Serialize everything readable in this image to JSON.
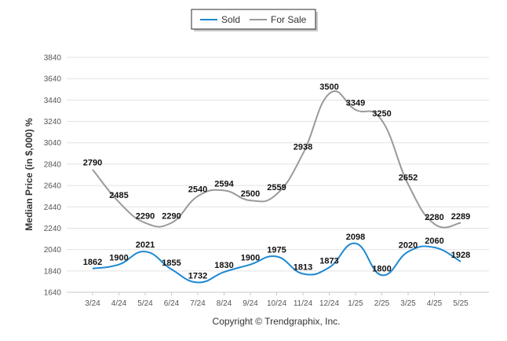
{
  "chart_data": {
    "type": "line",
    "ylabel": "Median Price (in $,000) %",
    "categories": [
      "3/24",
      "4/24",
      "5/24",
      "6/24",
      "7/24",
      "8/24",
      "9/24",
      "10/24",
      "11/24",
      "12/24",
      "1/25",
      "2/25",
      "3/25",
      "4/25",
      "5/25"
    ],
    "ylim": [
      1640,
      3840
    ],
    "yticks": [
      1640,
      1840,
      2040,
      2240,
      2440,
      2640,
      2840,
      3040,
      3240,
      3440,
      3640,
      3840
    ],
    "grid": true,
    "legend": "top-center",
    "series": [
      {
        "name": "Sold",
        "color": "#1e88d2",
        "values": [
          1862,
          1900,
          2021,
          1855,
          1732,
          1830,
          1900,
          1975,
          1813,
          1873,
          2098,
          1800,
          2020,
          2060,
          1928
        ]
      },
      {
        "name": "For Sale",
        "color": "#9a9a9a",
        "values": [
          2790,
          2485,
          2290,
          2290,
          2540,
          2594,
          2500,
          2559,
          2938,
          3500,
          3349,
          3250,
          2652,
          2280,
          2289
        ]
      }
    ]
  },
  "footer": {
    "copyright": "Copyright © Trendgraphix, Inc."
  }
}
